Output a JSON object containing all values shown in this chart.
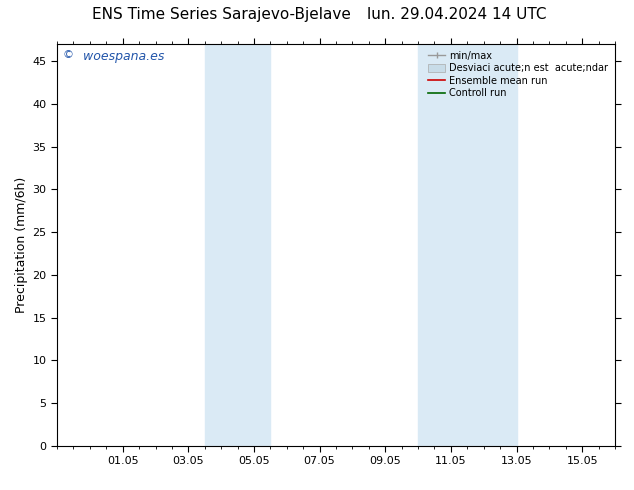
{
  "title_left": "ENS Time Series Sarajevo-Bjelave",
  "title_right": "lun. 29.04.2024 14 UTC",
  "ylabel": "Precipitation (mm/6h)",
  "watermark_symbol": "©",
  "watermark_text": " woespana.es",
  "ylim": [
    0,
    47
  ],
  "yticks": [
    0,
    5,
    10,
    15,
    20,
    25,
    30,
    35,
    40,
    45
  ],
  "bg_color": "#ffffff",
  "plot_bg": "#ffffff",
  "shade_color": "#daeaf5",
  "x_tick_labels": [
    "01.05",
    "03.05",
    "05.05",
    "07.05",
    "09.05",
    "11.05",
    "13.05",
    "15.05"
  ],
  "x_tick_positions": [
    2,
    4,
    6,
    8,
    10,
    12,
    14,
    16
  ],
  "x_min": 0.0,
  "x_max": 17.0,
  "shade_band1_x1": 4.5,
  "shade_band1_x2": 6.5,
  "shade_band2_x1": 11.0,
  "shade_band2_x2": 14.0,
  "legend_label_minmax": "min/max",
  "legend_label_std": "Desviaci acute;n est  acute;ndar",
  "legend_label_ens": "Ensemble mean run",
  "legend_label_ctrl": "Controll run",
  "color_ens": "#cc0000",
  "color_ctrl": "#006600",
  "color_minmax_line": "#999999",
  "color_std_patch": "#c8dce8",
  "font_size_title": 11,
  "font_size_axis_label": 9,
  "font_size_ticks": 8,
  "font_size_legend": 7,
  "font_size_watermark": 9,
  "watermark_color": "#2255aa"
}
